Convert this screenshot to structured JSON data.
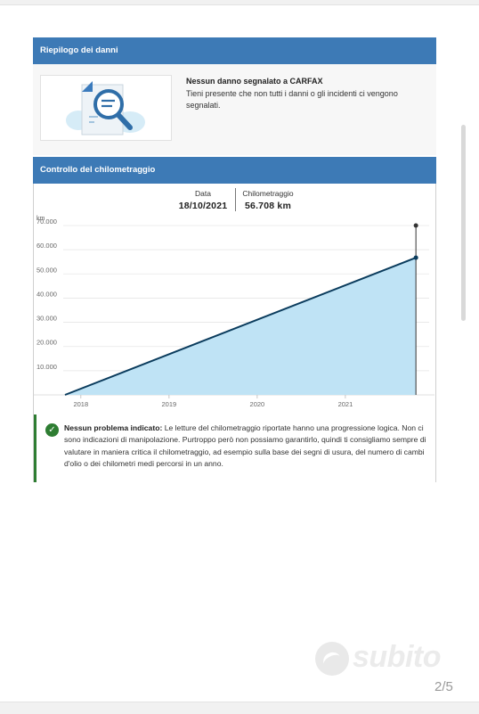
{
  "damage_summary": {
    "header": "Riepilogo dei danni",
    "title": "Nessun danno segnalato a CARFAX",
    "body": "Tieni presente che non tutti i danni o gli incidenti ci vengono segnalati.",
    "illustration_icon": "document-magnifier-icon"
  },
  "odometer": {
    "header": "Controllo del chilometraggio",
    "date_label": "Data",
    "date_value": "18/10/2021",
    "km_label": "Chilometraggio",
    "km_value": "56.708 km"
  },
  "chart_data": {
    "type": "area",
    "title": "",
    "xlabel": "",
    "ylabel": "km",
    "y_ticks": [
      "70.000",
      "60.000",
      "50.000",
      "40.000",
      "30.000",
      "20.000",
      "10.000"
    ],
    "x_ticks": [
      "2018",
      "2019",
      "2020",
      "2021"
    ],
    "ylim": [
      0,
      70000
    ],
    "xlim": [
      2017.8,
      2021.95
    ],
    "points": [
      {
        "x": 2017.82,
        "y": 0
      },
      {
        "x": 2021.8,
        "y": 56708
      }
    ],
    "highlight": {
      "x": 2021.8,
      "y": 56708
    },
    "fill_color": "#bfe3f5",
    "line_color": "#0b3c5d",
    "grid": true
  },
  "result": {
    "title": "Nessun problema indicato:",
    "body": "Le letture del chilometraggio riportate hanno una progressione logica. Non ci sono indicazioni di manipolazione. Purtroppo però non possiamo garantirlo, quindi ti consigliamo sempre di valutare in maniera critica il chilometraggio, ad esempio sulla base dei segni di usura, del numero di cambi d'olio o dei chilometri medi percorsi in un anno.",
    "icon": "check-circle-icon",
    "status_color": "#2e7d32"
  },
  "watermark": {
    "brand": "subito"
  },
  "pager": {
    "counter": "2/5"
  }
}
